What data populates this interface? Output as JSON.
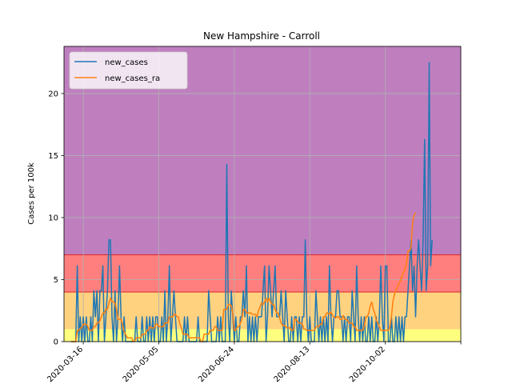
{
  "chart_data": {
    "type": "line",
    "title": "New Hampshire - Carroll",
    "xlabel": "",
    "ylabel": "Cases per 100k",
    "x_start": "2020-03-08",
    "ylim": [
      0,
      23.8
    ],
    "yticks": [
      0,
      5,
      10,
      15,
      20
    ],
    "xticks": [
      "2020-03-16",
      "2020-05-05",
      "2020-06-24",
      "2020-08-13",
      "2020-10-02"
    ],
    "grid": true,
    "legend_position": "top-left",
    "bands": [
      {
        "from": 0,
        "to": 1,
        "color": "#ffff7f"
      },
      {
        "from": 1,
        "to": 4,
        "color": "#ffd280"
      },
      {
        "from": 4,
        "to": 7,
        "color": "#ff7f7f"
      },
      {
        "from": 7,
        "to": 23.8,
        "color": "#bf7fbf"
      }
    ],
    "series": [
      {
        "name": "new_cases",
        "color": "#1f77b4",
        "values": [
          0,
          0,
          0,
          0,
          6.1,
          0,
          2,
          0,
          2,
          0,
          2,
          0,
          0,
          2,
          0,
          4.1,
          2,
          4.1,
          0,
          4.1,
          4.1,
          6.1,
          0,
          2,
          4.1,
          8.2,
          8.2,
          2,
          0,
          4.1,
          0,
          2,
          6.1,
          2,
          0,
          2,
          0,
          0,
          0,
          0,
          0,
          0,
          0,
          2,
          0,
          0,
          0,
          2,
          0,
          0,
          2,
          0,
          2,
          0,
          2,
          0,
          2,
          2,
          0,
          0,
          2,
          0,
          4.1,
          0,
          2,
          6.1,
          0,
          2,
          4.1,
          2,
          0,
          0,
          0,
          0,
          0,
          2,
          0,
          2,
          0,
          0,
          0,
          0,
          0,
          0,
          2,
          0,
          0,
          0,
          0,
          0,
          0,
          4.1,
          2,
          0,
          0,
          0,
          0,
          2,
          0,
          2,
          0,
          0,
          0,
          14.3,
          2,
          0,
          4.1,
          2,
          0,
          2,
          0,
          0,
          2,
          2,
          4.1,
          2,
          6.1,
          0,
          2,
          0,
          2,
          0,
          2,
          0,
          2,
          2,
          2,
          4.1,
          6.1,
          0,
          2,
          6.1,
          4.1,
          2,
          4.1,
          6.1,
          2,
          2,
          2,
          4.1,
          2,
          0,
          4.1,
          2,
          0,
          0,
          2,
          0,
          2,
          2,
          0,
          2,
          0,
          2,
          2,
          8.2,
          2,
          0,
          2,
          0,
          0,
          0,
          4.1,
          2,
          0,
          2,
          0,
          2,
          0,
          2,
          0,
          6.1,
          2,
          0,
          2,
          2,
          4.1,
          4.1,
          2,
          2,
          0,
          2,
          0,
          2,
          2,
          0,
          4.1,
          2,
          0,
          6.1,
          2,
          0,
          2,
          0,
          2,
          0,
          0,
          2,
          0,
          2,
          0,
          0,
          2,
          0,
          2,
          6.1,
          2,
          0,
          6.1,
          6.1,
          0,
          0,
          2,
          0,
          0,
          2,
          0,
          2,
          0,
          2,
          0,
          2,
          2,
          4.1,
          6.1,
          8.2,
          4.1,
          6.1,
          2,
          6.1,
          8.2,
          6.1,
          4.1,
          8.2,
          16.3,
          4.1,
          6.1,
          22.5,
          6.1,
          8.2
        ],
        "label_visible": true
      },
      {
        "name": "new_cases_ra",
        "color": "#ff7f0e",
        "values": [
          0,
          0,
          0,
          0,
          0.9,
          0.9,
          1.1,
          1.1,
          1.4,
          1.4,
          1.4,
          1.2,
          0.9,
          0.9,
          0.9,
          1.2,
          1.2,
          1.5,
          1.5,
          1.7,
          2,
          2.3,
          2.3,
          2.6,
          2.6,
          3.1,
          3.5,
          3.2,
          3.2,
          3.1,
          2.6,
          1.8,
          1.8,
          1.8,
          1.4,
          0.8,
          0.6,
          0.3,
          0.3,
          0.3,
          0.3,
          0,
          0,
          0.3,
          0.3,
          0.3,
          0.3,
          0.6,
          0.6,
          0.6,
          0.9,
          0.9,
          1.2,
          1.1,
          1.1,
          1.1,
          1.4,
          1.4,
          1.2,
          1.2,
          1.2,
          1.2,
          1.5,
          1.5,
          1.5,
          2,
          2,
          2,
          2.2,
          2.2,
          2,
          2,
          1.4,
          1.1,
          0.6,
          0.6,
          0.6,
          0.6,
          0.3,
          0.3,
          0.3,
          0.3,
          0.3,
          0.3,
          0.3,
          0.3,
          0,
          0,
          0.6,
          0.6,
          0.6,
          0.6,
          0.9,
          0.9,
          0.9,
          1.2,
          1.2,
          0.9,
          0.9,
          0.9,
          0.9,
          2.6,
          2.6,
          2.6,
          3,
          3,
          2.9,
          2.3,
          0.9,
          0.9,
          1.2,
          1.2,
          1.5,
          1.8,
          2.6,
          2.6,
          2.3,
          2.3,
          2.3,
          2.3,
          2.2,
          2.2,
          2.2,
          2,
          2.5,
          2.8,
          3.1,
          3,
          3.2,
          3.5,
          3.2,
          3.5,
          3.2,
          3,
          3,
          2.6,
          2.3,
          2.3,
          1.9,
          1.5,
          1.3,
          1.3,
          1.2,
          1.1,
          1.1,
          1.1,
          0.9,
          0.9,
          1.8,
          1.8,
          1.6,
          1.5,
          1.5,
          1.4,
          1,
          1,
          0.9,
          0.9,
          0.9,
          0.9,
          0.9,
          0.9,
          1.2,
          1.2,
          1.2,
          1.4,
          1.4,
          2,
          2,
          2.3,
          2.3,
          2.2,
          2.4,
          2.1,
          2,
          1.9,
          2,
          2,
          1.8,
          1.8,
          2.1,
          1.8,
          1.8,
          1.7,
          1.5,
          1.5,
          1.5,
          1.2,
          1.2,
          0.9,
          0.9,
          0.9,
          0.9,
          0.9,
          1.2,
          2,
          2,
          2.3,
          2.9,
          3.2,
          2.6,
          2.3,
          1.7,
          1.5,
          1.2,
          0.9,
          0.9,
          0.9,
          0.9,
          0.9,
          0.9,
          1.2,
          2,
          3.2,
          3.8,
          4.1,
          4.4,
          4.7,
          4.9,
          5.3,
          5.6,
          5.8,
          6.3,
          7.3,
          7.3,
          7.6,
          9.6,
          10.2,
          10.4
        ]
      }
    ]
  }
}
